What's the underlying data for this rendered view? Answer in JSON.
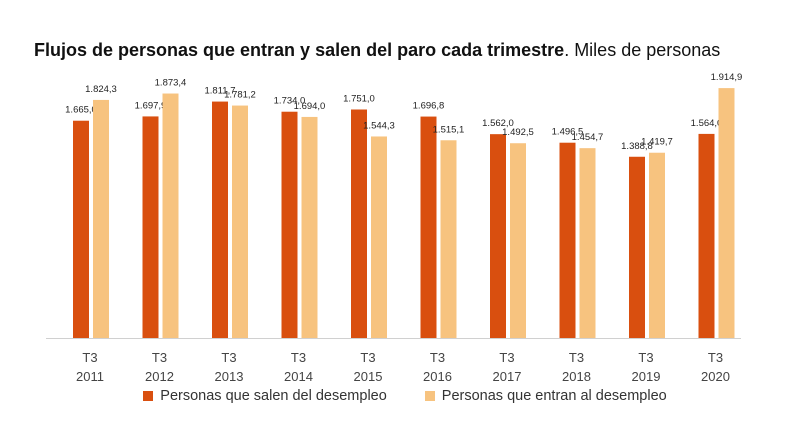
{
  "header": {
    "title_bold": "Flujos de personas que entran y salen del paro cada trimestre",
    "title_rest": ". Miles de personas"
  },
  "colors": {
    "series1": "#d94f0f",
    "series2": "#f7c37f"
  },
  "chart_data": {
    "type": "bar",
    "title": "Flujos de personas que entran y salen del paro cada trimestre. Miles de personas",
    "categories": [
      [
        "T3",
        "2011"
      ],
      [
        "T3",
        "2012"
      ],
      [
        "T3",
        "2013"
      ],
      [
        "T3",
        "2014"
      ],
      [
        "T3",
        "2015"
      ],
      [
        "T3",
        "2016"
      ],
      [
        "T3",
        "2017"
      ],
      [
        "T3",
        "2018"
      ],
      [
        "T3",
        "2019"
      ],
      [
        "T3",
        "2020"
      ]
    ],
    "series": [
      {
        "name": "Personas que salen del desempleo",
        "values": [
          1665.0,
          1697.9,
          1811.7,
          1734.0,
          1751.0,
          1696.8,
          1562.0,
          1496.5,
          1388.8,
          1564.0
        ],
        "labels": [
          "1.665,0",
          "1.697,9",
          "1.811,7",
          "1.734,0",
          "1.751,0",
          "1.696,8",
          "1.562,0",
          "1.496,5",
          "1.388,8",
          "1.564,0"
        ]
      },
      {
        "name": "Personas que entran al desempleo",
        "values": [
          1824.3,
          1873.4,
          1781.2,
          1694.0,
          1544.3,
          1515.1,
          1492.5,
          1454.7,
          1419.7,
          1914.9
        ],
        "labels": [
          "1.824,3",
          "1.873,4",
          "1.781,2",
          "1.694,0",
          "1.544,3",
          "1.515,1",
          "1.492,5",
          "1.454,7",
          "1.419,7",
          "1.914,9"
        ]
      }
    ],
    "xlabel": "",
    "ylabel": "",
    "ylim": [
      0,
      2100
    ],
    "grid": false,
    "legend": "bottom"
  }
}
